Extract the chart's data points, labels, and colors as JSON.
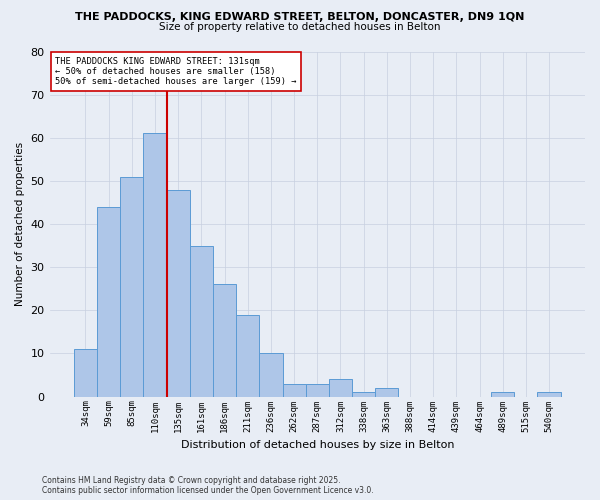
{
  "title1": "THE PADDOCKS, KING EDWARD STREET, BELTON, DONCASTER, DN9 1QN",
  "title2": "Size of property relative to detached houses in Belton",
  "xlabel": "Distribution of detached houses by size in Belton",
  "ylabel": "Number of detached properties",
  "categories": [
    "34sqm",
    "59sqm",
    "85sqm",
    "110sqm",
    "135sqm",
    "161sqm",
    "186sqm",
    "211sqm",
    "236sqm",
    "262sqm",
    "287sqm",
    "312sqm",
    "338sqm",
    "363sqm",
    "388sqm",
    "414sqm",
    "439sqm",
    "464sqm",
    "489sqm",
    "515sqm",
    "540sqm"
  ],
  "values": [
    11,
    44,
    51,
    61,
    48,
    35,
    26,
    19,
    10,
    3,
    3,
    4,
    1,
    2,
    0,
    0,
    0,
    0,
    1,
    0,
    1
  ],
  "bar_color": "#aec6e8",
  "bar_edge_color": "#5b9bd5",
  "grid_color": "#c8d0e0",
  "vline_x": 3.5,
  "vline_color": "#cc0000",
  "ylim": [
    0,
    80
  ],
  "yticks": [
    0,
    10,
    20,
    30,
    40,
    50,
    60,
    70,
    80
  ],
  "annotation_text": "THE PADDOCKS KING EDWARD STREET: 131sqm\n← 50% of detached houses are smaller (158)\n50% of semi-detached houses are larger (159) →",
  "annotation_box_color": "#ffffff",
  "annotation_box_edge": "#cc0000",
  "footer1": "Contains HM Land Registry data © Crown copyright and database right 2025.",
  "footer2": "Contains public sector information licensed under the Open Government Licence v3.0.",
  "bg_color": "#e8edf5"
}
